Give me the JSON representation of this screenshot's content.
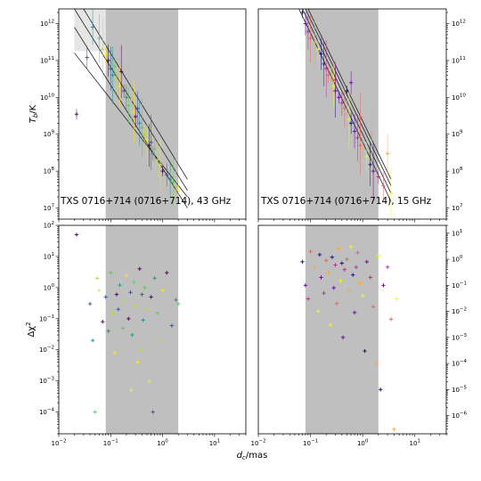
{
  "figure": {
    "ylabel_top": "T_b/K",
    "ylabel_bottom": "Δχ²",
    "xlabel": "d_c/mas"
  },
  "chart_data": [
    {
      "id": "tb-43",
      "type": "scatter",
      "annotation": "TXS 0716+714 (0716+714), 43 GHz",
      "xscale": "log",
      "yscale": "log",
      "xlim": [
        0.01,
        40
      ],
      "ylim": [
        5000000.0,
        2500000000000.0
      ],
      "x_tick_values": [
        0.01,
        0.1,
        1,
        10
      ],
      "y_tick_values": [
        10000000.0,
        100000000.0,
        1000000000.0,
        10000000000.0,
        100000000000.0,
        1000000000000.0
      ],
      "y_tick_labels": [
        "10^7",
        "10^8",
        "10^9",
        "10^10",
        "10^11",
        "10^12"
      ],
      "y_tick_side": "left",
      "shaded_region_x": [
        0.08,
        2.0
      ],
      "shaded_light_x": [
        0.02,
        0.08
      ],
      "fit_lines": [
        {
          "x": [
            0.02,
            3.0
          ],
          "y": [
            2500000000000.0,
            30000000.0
          ]
        },
        {
          "x": [
            0.02,
            3.0
          ],
          "y": [
            800000000000.0,
            10000000.0
          ]
        },
        {
          "x": [
            0.02,
            3.0
          ],
          "y": [
            160000000000.0,
            20000000.0
          ]
        },
        {
          "x": [
            0.03,
            3.0
          ],
          "y": [
            2500000000000.0,
            60000000.0
          ]
        }
      ],
      "palette": [
        "#440154",
        "#3b528b",
        "#21918c",
        "#5ec962",
        "#b5de2b",
        "#fde725"
      ],
      "points": [
        {
          "x": 0.022,
          "y": 3500000000.0
        },
        {
          "x": 0.035,
          "y": 120000000000.0
        },
        {
          "x": 0.045,
          "y": 800000000000.0
        },
        {
          "x": 0.06,
          "y": 400000000000.0
        },
        {
          "x": 0.07,
          "y": 200000000000.0
        },
        {
          "x": 0.08,
          "y": 150000000000.0
        },
        {
          "x": 0.09,
          "y": 100000000000.0
        },
        {
          "x": 0.1,
          "y": 60000000000.0
        },
        {
          "x": 0.11,
          "y": 40000000000.0
        },
        {
          "x": 0.12,
          "y": 70000000000.0
        },
        {
          "x": 0.13,
          "y": 30000000000.0
        },
        {
          "x": 0.15,
          "y": 20000000000.0
        },
        {
          "x": 0.16,
          "y": 50000000000.0
        },
        {
          "x": 0.18,
          "y": 15000000000.0
        },
        {
          "x": 0.2,
          "y": 10000000000.0
        },
        {
          "x": 0.22,
          "y": 6000000000.0
        },
        {
          "x": 0.25,
          "y": 9000000000.0
        },
        {
          "x": 0.28,
          "y": 4000000000.0
        },
        {
          "x": 0.3,
          "y": 3000000000.0
        },
        {
          "x": 0.33,
          "y": 5000000000.0
        },
        {
          "x": 0.36,
          "y": 2000000000.0
        },
        {
          "x": 0.4,
          "y": 1500000000.0
        },
        {
          "x": 0.45,
          "y": 1000000000.0
        },
        {
          "x": 0.5,
          "y": 700000000.0
        },
        {
          "x": 0.55,
          "y": 500000000.0
        },
        {
          "x": 0.6,
          "y": 600000000.0
        },
        {
          "x": 0.65,
          "y": 300000000.0
        },
        {
          "x": 0.7,
          "y": 400000000.0
        },
        {
          "x": 0.8,
          "y": 200000000.0
        },
        {
          "x": 0.9,
          "y": 150000000.0
        },
        {
          "x": 1.0,
          "y": 100000000.0
        },
        {
          "x": 1.2,
          "y": 80000000.0
        },
        {
          "x": 1.4,
          "y": 60000000.0
        },
        {
          "x": 1.6,
          "y": 50000000.0
        },
        {
          "x": 1.8,
          "y": 40000000.0
        },
        {
          "x": 2.0,
          "y": 30000000.0
        }
      ]
    },
    {
      "id": "tb-15",
      "type": "scatter",
      "annotation": "TXS 0716+714 (0716+714), 15 GHz",
      "xscale": "log",
      "yscale": "log",
      "xlim": [
        0.01,
        40
      ],
      "ylim": [
        5000000.0,
        2500000000000.0
      ],
      "x_tick_values": [
        0.01,
        0.1,
        1,
        10
      ],
      "y_tick_values": [
        10000000.0,
        100000000.0,
        1000000000.0,
        10000000000.0,
        100000000000.0,
        1000000000000.0
      ],
      "y_tick_labels": [
        "10^7",
        "10^8",
        "10^9",
        "10^10",
        "10^11",
        "10^12"
      ],
      "y_tick_side": "right",
      "shaded_region_x": [
        0.08,
        2.0
      ],
      "fit_lines": [
        {
          "x": [
            0.06,
            3.5
          ],
          "y": [
            2500000000000.0,
            15000000.0
          ]
        },
        {
          "x": [
            0.07,
            3.5
          ],
          "y": [
            2500000000000.0,
            25000000.0
          ]
        },
        {
          "x": [
            0.08,
            3.5
          ],
          "y": [
            2500000000000.0,
            40000000.0
          ]
        },
        {
          "x": [
            0.09,
            3.5
          ],
          "y": [
            2500000000000.0,
            60000000.0
          ]
        }
      ],
      "palette": [
        "#0d0887",
        "#6a00a8",
        "#b12a90",
        "#e16462",
        "#fca636",
        "#f0f921"
      ],
      "points": [
        {
          "x": 0.07,
          "y": 2000000000000.0
        },
        {
          "x": 0.08,
          "y": 1000000000000.0
        },
        {
          "x": 0.09,
          "y": 600000000000.0
        },
        {
          "x": 0.1,
          "y": 400000000000.0
        },
        {
          "x": 0.12,
          "y": 300000000000.0
        },
        {
          "x": 0.14,
          "y": 200000000000.0
        },
        {
          "x": 0.16,
          "y": 150000000000.0
        },
        {
          "x": 0.18,
          "y": 80000000000.0
        },
        {
          "x": 0.2,
          "y": 60000000000.0
        },
        {
          "x": 0.22,
          "y": 40000000000.0
        },
        {
          "x": 0.25,
          "y": 30000000000.0
        },
        {
          "x": 0.28,
          "y": 20000000000.0
        },
        {
          "x": 0.3,
          "y": 15000000000.0
        },
        {
          "x": 0.35,
          "y": 10000000000.0
        },
        {
          "x": 0.4,
          "y": 7000000000.0
        },
        {
          "x": 0.45,
          "y": 5000000000.0
        },
        {
          "x": 0.5,
          "y": 3500000000.0
        },
        {
          "x": 0.55,
          "y": 2500000000.0
        },
        {
          "x": 0.6,
          "y": 2000000000.0
        },
        {
          "x": 0.7,
          "y": 1200000000.0
        },
        {
          "x": 0.8,
          "y": 800000000.0
        },
        {
          "x": 0.9,
          "y": 500000000.0
        },
        {
          "x": 1.0,
          "y": 400000000.0
        },
        {
          "x": 1.2,
          "y": 250000000.0
        },
        {
          "x": 1.4,
          "y": 150000000.0
        },
        {
          "x": 1.6,
          "y": 100000000.0
        },
        {
          "x": 2.0,
          "y": 70000000.0
        },
        {
          "x": 2.5,
          "y": 40000000.0
        },
        {
          "x": 3.0,
          "y": 300000000.0
        },
        {
          "x": 3.5,
          "y": 25000000.0
        },
        {
          "x": 0.5,
          "y": 15000000000.0
        },
        {
          "x": 0.6,
          "y": 25000000000.0
        },
        {
          "x": 0.3,
          "y": 30000000000.0
        },
        {
          "x": 0.9,
          "y": 3000000000.0
        },
        {
          "x": 1.5,
          "y": 1000000000.0
        }
      ]
    },
    {
      "id": "chi-43",
      "type": "scatter",
      "xscale": "log",
      "yscale": "log",
      "xlim": [
        0.01,
        40
      ],
      "ylim": [
        2e-05,
        100
      ],
      "x_tick_values": [
        0.01,
        0.1,
        1,
        10
      ],
      "x_tick_labels": [
        "10^-2",
        "10^-1",
        "10^0",
        "10^1"
      ],
      "y_tick_values": [
        0.0001,
        0.001,
        0.01,
        0.1,
        1,
        10,
        100
      ],
      "y_tick_labels": [
        "10^-4",
        "10^-3",
        "10^-2",
        "10^-1",
        "10^0",
        "10^1",
        "10^2"
      ],
      "y_tick_side": "left",
      "shaded_region_x": [
        0.08,
        2.0
      ],
      "palette": [
        "#440154",
        "#3b528b",
        "#21918c",
        "#5ec962",
        "#b5de2b",
        "#fde725"
      ],
      "points": [
        {
          "x": 0.022,
          "y": 50
        },
        {
          "x": 0.04,
          "y": 0.3
        },
        {
          "x": 0.045,
          "y": 0.02
        },
        {
          "x": 0.05,
          "y": 0.0001
        },
        {
          "x": 0.055,
          "y": 2
        },
        {
          "x": 0.06,
          "y": 0.8
        },
        {
          "x": 0.07,
          "y": 0.08
        },
        {
          "x": 0.08,
          "y": 0.5
        },
        {
          "x": 0.09,
          "y": 0.04
        },
        {
          "x": 0.1,
          "y": 3
        },
        {
          "x": 0.11,
          "y": 0.15
        },
        {
          "x": 0.12,
          "y": 0.008
        },
        {
          "x": 0.13,
          "y": 0.6
        },
        {
          "x": 0.14,
          "y": 0.2
        },
        {
          "x": 0.15,
          "y": 1.2
        },
        {
          "x": 0.17,
          "y": 0.05
        },
        {
          "x": 0.18,
          "y": 0.4
        },
        {
          "x": 0.2,
          "y": 2.5
        },
        {
          "x": 0.22,
          "y": 0.1
        },
        {
          "x": 0.24,
          "y": 0.7
        },
        {
          "x": 0.26,
          "y": 0.03
        },
        {
          "x": 0.28,
          "y": 1.5
        },
        {
          "x": 0.3,
          "y": 0.25
        },
        {
          "x": 0.33,
          "y": 0.004
        },
        {
          "x": 0.36,
          "y": 4
        },
        {
          "x": 0.4,
          "y": 0.6
        },
        {
          "x": 0.42,
          "y": 0.09
        },
        {
          "x": 0.45,
          "y": 1
        },
        {
          "x": 0.5,
          "y": 0.2
        },
        {
          "x": 0.55,
          "y": 0.001
        },
        {
          "x": 0.6,
          "y": 0.5
        },
        {
          "x": 0.65,
          "y": 0.0001
        },
        {
          "x": 0.7,
          "y": 2
        },
        {
          "x": 0.8,
          "y": 0.15
        },
        {
          "x": 0.9,
          "y": 0.02
        },
        {
          "x": 1.0,
          "y": 0.8
        },
        {
          "x": 1.2,
          "y": 3
        },
        {
          "x": 1.5,
          "y": 0.06
        },
        {
          "x": 1.8,
          "y": 0.4
        },
        {
          "x": 2.0,
          "y": 0.3
        },
        {
          "x": 0.38,
          "y": 0.01
        },
        {
          "x": 0.25,
          "y": 0.0005
        }
      ]
    },
    {
      "id": "chi-15",
      "type": "scatter",
      "xscale": "log",
      "yscale": "log",
      "xlim": [
        0.01,
        40
      ],
      "ylim": [
        2e-07,
        20
      ],
      "x_tick_values": [
        0.01,
        0.1,
        1,
        10
      ],
      "x_tick_labels": [
        "10^-2",
        "10^-1",
        "10^0",
        "10^1"
      ],
      "y_tick_values": [
        1e-06,
        1e-05,
        0.0001,
        0.001,
        0.01,
        0.1,
        1,
        10
      ],
      "y_tick_labels": [
        "10^-6",
        "10^-5",
        "10^-4",
        "10^-3",
        "10^-2",
        "10^-1",
        "10^0",
        "10^1"
      ],
      "y_tick_side": "right",
      "shaded_region_x": [
        0.08,
        2.0
      ],
      "palette": [
        "#0d0887",
        "#6a00a8",
        "#b12a90",
        "#e16462",
        "#fca636",
        "#f0f921"
      ],
      "points": [
        {
          "x": 0.07,
          "y": 0.8
        },
        {
          "x": 0.08,
          "y": 0.1
        },
        {
          "x": 0.09,
          "y": 0.03
        },
        {
          "x": 0.1,
          "y": 2
        },
        {
          "x": 0.12,
          "y": 0.5
        },
        {
          "x": 0.14,
          "y": 0.01
        },
        {
          "x": 0.15,
          "y": 1.5
        },
        {
          "x": 0.16,
          "y": 0.2
        },
        {
          "x": 0.18,
          "y": 0.05
        },
        {
          "x": 0.2,
          "y": 0.9
        },
        {
          "x": 0.22,
          "y": 0.3
        },
        {
          "x": 0.24,
          "y": 0.003
        },
        {
          "x": 0.26,
          "y": 1.2
        },
        {
          "x": 0.28,
          "y": 0.08
        },
        {
          "x": 0.3,
          "y": 0.6
        },
        {
          "x": 0.32,
          "y": 0.02
        },
        {
          "x": 0.35,
          "y": 2.5
        },
        {
          "x": 0.38,
          "y": 0.15
        },
        {
          "x": 0.4,
          "y": 0.7
        },
        {
          "x": 0.42,
          "y": 0.001
        },
        {
          "x": 0.45,
          "y": 0.4
        },
        {
          "x": 0.5,
          "y": 1
        },
        {
          "x": 0.55,
          "y": 0.06
        },
        {
          "x": 0.6,
          "y": 3
        },
        {
          "x": 0.65,
          "y": 0.25
        },
        {
          "x": 0.7,
          "y": 0.009
        },
        {
          "x": 0.75,
          "y": 0.5
        },
        {
          "x": 0.8,
          "y": 1.8
        },
        {
          "x": 0.9,
          "y": 0.12
        },
        {
          "x": 1.0,
          "y": 0.04
        },
        {
          "x": 1.1,
          "y": 0.0003
        },
        {
          "x": 1.2,
          "y": 0.8
        },
        {
          "x": 1.4,
          "y": 0.2
        },
        {
          "x": 1.6,
          "y": 0.015
        },
        {
          "x": 1.8,
          "y": 0.0001
        },
        {
          "x": 2.0,
          "y": 1.3
        },
        {
          "x": 2.2,
          "y": 1e-05
        },
        {
          "x": 2.5,
          "y": 0.1
        },
        {
          "x": 3.0,
          "y": 0.5
        },
        {
          "x": 3.5,
          "y": 0.005
        },
        {
          "x": 4.0,
          "y": 3e-07
        },
        {
          "x": 4.5,
          "y": 0.03
        }
      ]
    }
  ]
}
